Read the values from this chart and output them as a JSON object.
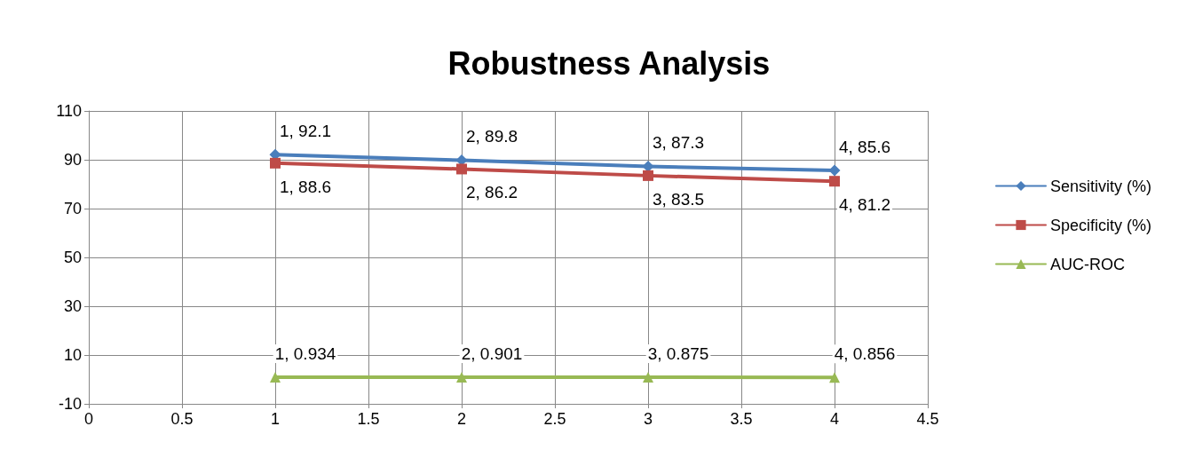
{
  "chart_data": {
    "type": "line",
    "title": "Robustness Analysis",
    "x": [
      1,
      2,
      3,
      4
    ],
    "series": [
      {
        "name": "Sensitivity (%)",
        "color": "#4a7ebb",
        "marker": "diamond",
        "values": [
          92.1,
          89.8,
          87.3,
          85.6
        ],
        "value_labels": [
          "1, 92.1",
          "2, 89.8",
          "3, 87.3",
          "4, 85.6"
        ]
      },
      {
        "name": "Specificity (%)",
        "color": "#be4b48",
        "marker": "square",
        "values": [
          88.6,
          86.2,
          83.5,
          81.2
        ],
        "value_labels": [
          "1, 88.6",
          "2, 86.2",
          "3, 83.5",
          "4, 81.2"
        ]
      },
      {
        "name": "AUC-ROC",
        "color": "#98b954",
        "marker": "triangle",
        "values": [
          0.934,
          0.901,
          0.875,
          0.856
        ],
        "value_labels": [
          "1, 0.934",
          "2, 0.901",
          "3, 0.875",
          "4, 0.856"
        ]
      }
    ],
    "xlim": [
      0,
      4.5
    ],
    "xticks": [
      0,
      0.5,
      1,
      1.5,
      2,
      2.5,
      3,
      3.5,
      4,
      4.5
    ],
    "ylim": [
      -10,
      110
    ],
    "yticks": [
      -10,
      10,
      30,
      50,
      70,
      90,
      110
    ],
    "grid": true,
    "legend": "right"
  }
}
